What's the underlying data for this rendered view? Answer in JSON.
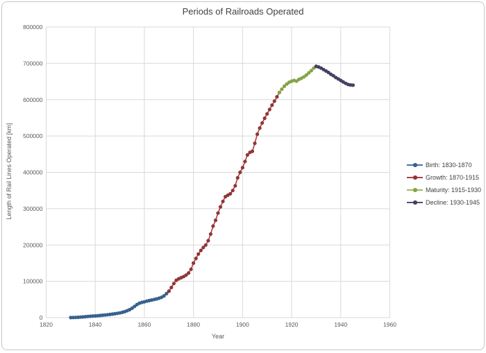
{
  "chart_data": {
    "type": "line",
    "title": "Periods of Railroads Operated",
    "xlabel": "Year",
    "ylabel": "Length of Rail Lines Operated [km]",
    "xlim": [
      1820,
      1960
    ],
    "ylim": [
      0,
      800000
    ],
    "x_tick_step": 20,
    "y_tick_step": 100000,
    "x_ticks": [
      1820,
      1840,
      1860,
      1880,
      1900,
      1920,
      1940,
      1960
    ],
    "y_ticks": [
      0,
      100000,
      200000,
      300000,
      400000,
      500000,
      600000,
      700000,
      800000
    ],
    "grid": true,
    "legend_position": "right",
    "marker": "circle",
    "series": [
      {
        "name": "Birth: 1830-1870",
        "color": "#4572a7",
        "marker_color": "#38618f",
        "start_year": 1830,
        "values": [
          100,
          300,
          600,
          1000,
          1500,
          2000,
          2600,
          3200,
          3800,
          4300,
          4800,
          5400,
          6000,
          6600,
          7300,
          8000,
          8800,
          9700,
          10700,
          11800,
          13000,
          14500,
          16500,
          19000,
          22000,
          26000,
          31000,
          36000,
          40000,
          42000,
          43500,
          45500,
          47000,
          48500,
          50000,
          51500,
          53500,
          56000,
          60000,
          66000,
          73000
        ]
      },
      {
        "name": "Growth: 1870-1915",
        "color": "#a8423f",
        "marker_color": "#903638",
        "start_year": 1870,
        "values": [
          73000,
          83000,
          94000,
          103000,
          107000,
          110000,
          113000,
          117000,
          123000,
          133000,
          150000,
          163000,
          175000,
          185000,
          193000,
          200000,
          212000,
          230000,
          252000,
          268000,
          288000,
          305000,
          320000,
          333000,
          337000,
          341000,
          350000,
          363000,
          385000,
          400000,
          413000,
          430000,
          448000,
          455000,
          458000,
          480000,
          505000,
          522000,
          536000,
          549000,
          561000,
          573000,
          585000,
          596000,
          608000,
          620000
        ]
      },
      {
        "name": "Maturity: 1915-1930",
        "color": "#9bbb59",
        "marker_color": "#86a346",
        "start_year": 1915,
        "values": [
          620000,
          629000,
          637000,
          643000,
          648000,
          651000,
          653000,
          651000,
          656000,
          659000,
          663000,
          668000,
          674000,
          680000,
          687000,
          692000
        ]
      },
      {
        "name": "Decline: 1930-1945",
        "color": "#534e74",
        "marker_color": "#45405f",
        "start_year": 1930,
        "values": [
          692000,
          690000,
          687000,
          683000,
          679000,
          675000,
          670000,
          666000,
          661000,
          657000,
          653000,
          649000,
          645000,
          642000,
          640500,
          640000
        ]
      }
    ]
  },
  "style": {
    "grid_color": "#d9d9d9",
    "tick_label_color": "#595959",
    "title_color": "#3f3f3f"
  }
}
